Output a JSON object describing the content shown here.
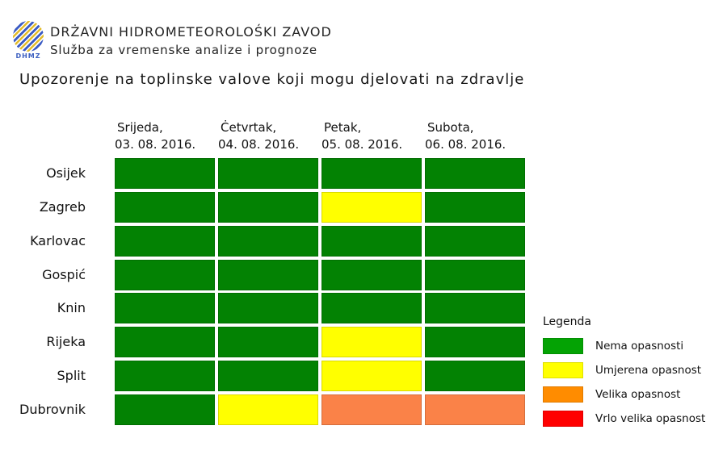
{
  "brand": {
    "logo_text": "DHMZ",
    "org_name": "DRŻAVNI HIDROMETEOROLOŚKI ZAVOD",
    "org_unit": "Služba za vremenske analize i prognoze"
  },
  "title": "Upozorenje na toplinske valove koji mogu djelovati na zdravlje",
  "legend": {
    "title": "Legenda"
  },
  "chart_data": {
    "type": "heatmap",
    "title": "Upozorenje na toplinske valove koji mogu djelovati na zdravlje",
    "columns": [
      {
        "day": "Srijeda,",
        "date": "03. 08. 2016."
      },
      {
        "day": "Ċetvrtak,",
        "date": "04. 08. 2016."
      },
      {
        "day": "Petak,",
        "date": "05. 08. 2016."
      },
      {
        "day": "Subota,",
        "date": "06. 08. 2016."
      }
    ],
    "rows": [
      "Osijek",
      "Zagreb",
      "Karlovac",
      "Gospić",
      "Knin",
      "Rijeka",
      "Split",
      "Dubrovnik"
    ],
    "levels": [
      {
        "id": 0,
        "name": "Nema opasnosti",
        "cell_color": "#038203",
        "legend_color": "#04A304"
      },
      {
        "id": 1,
        "name": "Umjerena opasnost",
        "cell_color": "#FFFF00",
        "legend_color": "#FFFF00"
      },
      {
        "id": 2,
        "name": "Velika opasnost",
        "cell_color": "#FA8248",
        "legend_color": "#FF8C00"
      },
      {
        "id": 3,
        "name": "Vrlo velika opasnost",
        "cell_color": "#FF0000",
        "legend_color": "#FF0000"
      }
    ],
    "values": [
      [
        0,
        0,
        0,
        0
      ],
      [
        0,
        0,
        1,
        0
      ],
      [
        0,
        0,
        0,
        0
      ],
      [
        0,
        0,
        0,
        0
      ],
      [
        0,
        0,
        0,
        0
      ],
      [
        0,
        0,
        1,
        0
      ],
      [
        0,
        0,
        1,
        0
      ],
      [
        0,
        1,
        2,
        2
      ]
    ],
    "layout": {
      "legend_position": "right",
      "grid": "off"
    }
  }
}
